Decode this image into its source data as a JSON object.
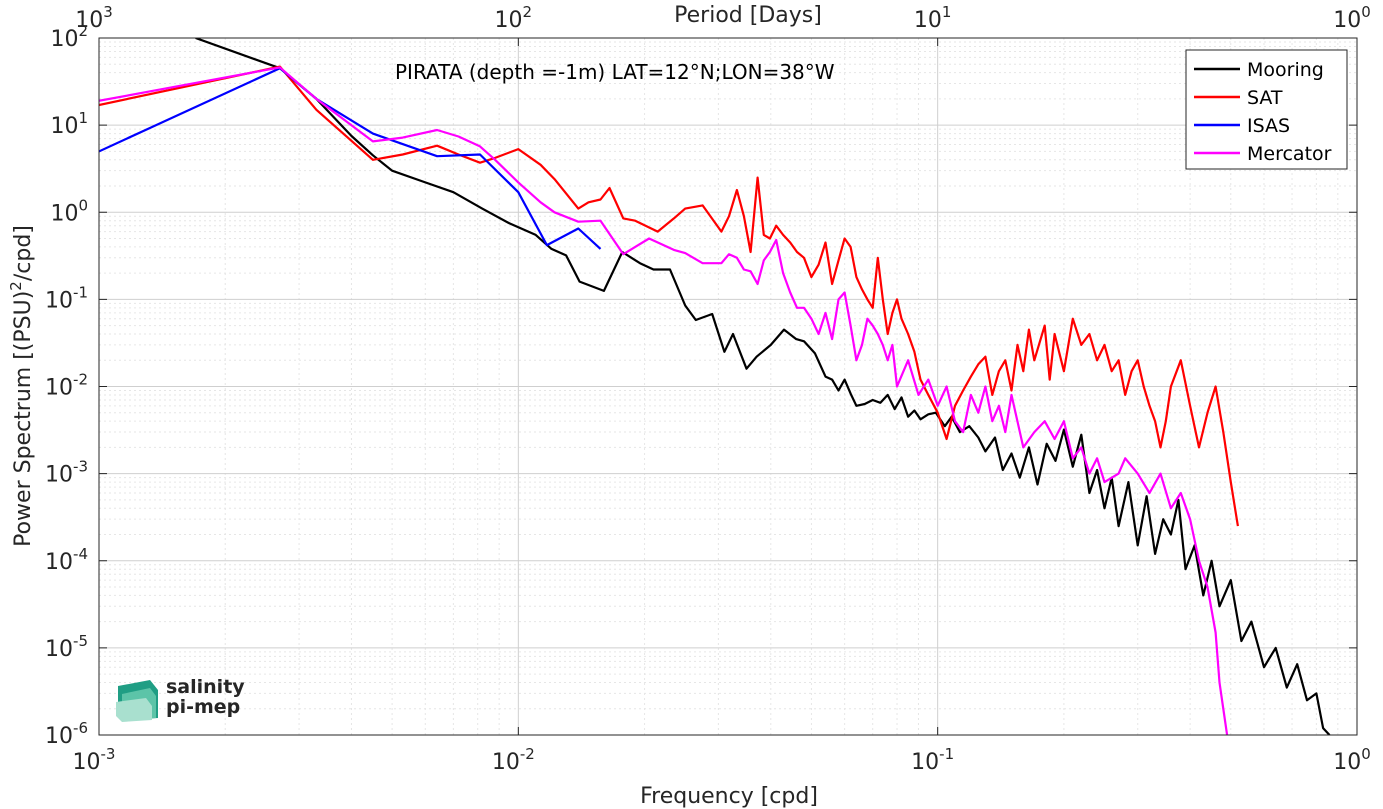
{
  "chart_data": {
    "type": "line",
    "title": "PIRATA (depth =-1m) LAT=12°N;LON=38°W",
    "xlabel": "Frequency [cpd]",
    "ylabel": "Power Spectrum [(PSU)",
    "ylabel_sup": "2",
    "ylabel_tail": "/cpd]",
    "top_xlabel": "Period [Days]",
    "xscale": "log",
    "yscale": "log",
    "xlim": [
      0.001,
      1
    ],
    "ylim": [
      1e-06,
      100
    ],
    "grid": true,
    "legend_position": "top-right",
    "x_ticks": [
      {
        "base": "10",
        "exp": "-3"
      },
      {
        "base": "10",
        "exp": "-2"
      },
      {
        "base": "10",
        "exp": "-1"
      },
      {
        "base": "10",
        "exp": "0"
      }
    ],
    "top_ticks": [
      {
        "base": "10",
        "exp": "3"
      },
      {
        "base": "10",
        "exp": "2"
      },
      {
        "base": "10",
        "exp": "1"
      },
      {
        "base": "10",
        "exp": "0"
      }
    ],
    "y_ticks": [
      {
        "base": "10",
        "exp": "2"
      },
      {
        "base": "10",
        "exp": "1"
      },
      {
        "base": "10",
        "exp": "0"
      },
      {
        "base": "10",
        "exp": "-1"
      },
      {
        "base": "10",
        "exp": "-2"
      },
      {
        "base": "10",
        "exp": "-3"
      },
      {
        "base": "10",
        "exp": "-4"
      },
      {
        "base": "10",
        "exp": "-5"
      },
      {
        "base": "10",
        "exp": "-6"
      }
    ],
    "series": [
      {
        "name": "Mooring",
        "color": "#000000",
        "points": [
          [
            0.0017,
            100
          ],
          [
            0.0027,
            45
          ],
          [
            0.0033,
            20
          ],
          [
            0.004,
            7.5
          ],
          [
            0.0045,
            4.5
          ],
          [
            0.005,
            3.0
          ],
          [
            0.006,
            2.2
          ],
          [
            0.007,
            1.7
          ],
          [
            0.0082,
            1.1
          ],
          [
            0.0095,
            0.75
          ],
          [
            0.011,
            0.55
          ],
          [
            0.012,
            0.38
          ],
          [
            0.013,
            0.32
          ],
          [
            0.014,
            0.16
          ],
          [
            0.016,
            0.125
          ],
          [
            0.0177,
            0.35
          ],
          [
            0.0195,
            0.26
          ],
          [
            0.021,
            0.22
          ],
          [
            0.023,
            0.22
          ],
          [
            0.025,
            0.085
          ],
          [
            0.0265,
            0.058
          ],
          [
            0.029,
            0.068
          ],
          [
            0.031,
            0.025
          ],
          [
            0.0325,
            0.04
          ],
          [
            0.035,
            0.016
          ],
          [
            0.037,
            0.022
          ],
          [
            0.04,
            0.03
          ],
          [
            0.043,
            0.045
          ],
          [
            0.046,
            0.035
          ],
          [
            0.048,
            0.033
          ],
          [
            0.051,
            0.024
          ],
          [
            0.054,
            0.013
          ],
          [
            0.056,
            0.012
          ],
          [
            0.058,
            0.009
          ],
          [
            0.06,
            0.012
          ],
          [
            0.062,
            0.0083
          ],
          [
            0.064,
            0.006
          ],
          [
            0.067,
            0.0063
          ],
          [
            0.07,
            0.007
          ],
          [
            0.073,
            0.0065
          ],
          [
            0.076,
            0.008
          ],
          [
            0.079,
            0.0055
          ],
          [
            0.082,
            0.0075
          ],
          [
            0.085,
            0.0045
          ],
          [
            0.088,
            0.0053
          ],
          [
            0.091,
            0.0042
          ],
          [
            0.095,
            0.0048
          ],
          [
            0.099,
            0.005
          ],
          [
            0.104,
            0.0035
          ],
          [
            0.108,
            0.0045
          ],
          [
            0.113,
            0.003
          ],
          [
            0.119,
            0.0035
          ],
          [
            0.125,
            0.0026
          ],
          [
            0.13,
            0.0018
          ],
          [
            0.137,
            0.0026
          ],
          [
            0.143,
            0.0011
          ],
          [
            0.15,
            0.0017
          ],
          [
            0.157,
            0.0009
          ],
          [
            0.165,
            0.002
          ],
          [
            0.173,
            0.00075
          ],
          [
            0.182,
            0.0022
          ],
          [
            0.191,
            0.0014
          ],
          [
            0.2,
            0.0032
          ],
          [
            0.21,
            0.0012
          ],
          [
            0.22,
            0.0028
          ],
          [
            0.23,
            0.0006
          ],
          [
            0.24,
            0.0011
          ],
          [
            0.25,
            0.0004
          ],
          [
            0.26,
            0.0009
          ],
          [
            0.27,
            0.00025
          ],
          [
            0.285,
            0.0008
          ],
          [
            0.3,
            0.00015
          ],
          [
            0.315,
            0.00055
          ],
          [
            0.33,
            0.00012
          ],
          [
            0.345,
            0.0003
          ],
          [
            0.36,
            0.0002
          ],
          [
            0.375,
            0.0005
          ],
          [
            0.39,
            8e-05
          ],
          [
            0.41,
            0.00015
          ],
          [
            0.43,
            4e-05
          ],
          [
            0.45,
            0.0001
          ],
          [
            0.47,
            3e-05
          ],
          [
            0.5,
            6e-05
          ],
          [
            0.53,
            1.2e-05
          ],
          [
            0.56,
            2e-05
          ],
          [
            0.6,
            6e-06
          ],
          [
            0.64,
            1e-05
          ],
          [
            0.68,
            3.5e-06
          ],
          [
            0.72,
            6.5e-06
          ],
          [
            0.76,
            2.5e-06
          ],
          [
            0.8,
            3e-06
          ],
          [
            0.83,
            1.2e-06
          ],
          [
            0.86,
            1e-06
          ]
        ]
      },
      {
        "name": "SAT",
        "color": "#ff0000",
        "points": [
          [
            0.001,
            17
          ],
          [
            0.0027,
            47
          ],
          [
            0.0033,
            15
          ],
          [
            0.0045,
            4.0
          ],
          [
            0.0053,
            4.6
          ],
          [
            0.0064,
            5.8
          ],
          [
            0.0072,
            4.6
          ],
          [
            0.0081,
            3.7
          ],
          [
            0.0088,
            4.2
          ],
          [
            0.01,
            5.3
          ],
          [
            0.0113,
            3.5
          ],
          [
            0.0122,
            2.4
          ],
          [
            0.0139,
            1.1
          ],
          [
            0.0147,
            1.3
          ],
          [
            0.0157,
            1.4
          ],
          [
            0.0165,
            1.9
          ],
          [
            0.0178,
            0.85
          ],
          [
            0.019,
            0.8
          ],
          [
            0.0215,
            0.6
          ],
          [
            0.0235,
            0.85
          ],
          [
            0.025,
            1.1
          ],
          [
            0.0275,
            1.2
          ],
          [
            0.0305,
            0.6
          ],
          [
            0.0318,
            0.9
          ],
          [
            0.0332,
            1.8
          ],
          [
            0.0345,
            0.9
          ],
          [
            0.0358,
            0.35
          ],
          [
            0.0372,
            2.5
          ],
          [
            0.0385,
            0.55
          ],
          [
            0.0398,
            0.5
          ],
          [
            0.0412,
            0.7
          ],
          [
            0.0428,
            0.55
          ],
          [
            0.0445,
            0.45
          ],
          [
            0.0462,
            0.35
          ],
          [
            0.048,
            0.3
          ],
          [
            0.05,
            0.18
          ],
          [
            0.052,
            0.25
          ],
          [
            0.054,
            0.45
          ],
          [
            0.056,
            0.15
          ],
          [
            0.058,
            0.28
          ],
          [
            0.06,
            0.5
          ],
          [
            0.062,
            0.4
          ],
          [
            0.064,
            0.18
          ],
          [
            0.066,
            0.13
          ],
          [
            0.068,
            0.1
          ],
          [
            0.07,
            0.08
          ],
          [
            0.072,
            0.3
          ],
          [
            0.074,
            0.1
          ],
          [
            0.076,
            0.04
          ],
          [
            0.078,
            0.07
          ],
          [
            0.08,
            0.1
          ],
          [
            0.082,
            0.06
          ],
          [
            0.085,
            0.04
          ],
          [
            0.088,
            0.025
          ],
          [
            0.091,
            0.012
          ],
          [
            0.095,
            0.008
          ],
          [
            0.1,
            0.005
          ],
          [
            0.105,
            0.0025
          ],
          [
            0.11,
            0.006
          ],
          [
            0.115,
            0.009
          ],
          [
            0.12,
            0.013
          ],
          [
            0.125,
            0.018
          ],
          [
            0.13,
            0.022
          ],
          [
            0.135,
            0.008
          ],
          [
            0.14,
            0.015
          ],
          [
            0.145,
            0.02
          ],
          [
            0.15,
            0.009
          ],
          [
            0.155,
            0.03
          ],
          [
            0.16,
            0.015
          ],
          [
            0.165,
            0.045
          ],
          [
            0.17,
            0.02
          ],
          [
            0.18,
            0.05
          ],
          [
            0.185,
            0.012
          ],
          [
            0.19,
            0.04
          ],
          [
            0.2,
            0.015
          ],
          [
            0.21,
            0.06
          ],
          [
            0.22,
            0.03
          ],
          [
            0.23,
            0.04
          ],
          [
            0.24,
            0.02
          ],
          [
            0.25,
            0.03
          ],
          [
            0.26,
            0.015
          ],
          [
            0.27,
            0.02
          ],
          [
            0.28,
            0.008
          ],
          [
            0.29,
            0.015
          ],
          [
            0.3,
            0.02
          ],
          [
            0.31,
            0.01
          ],
          [
            0.32,
            0.006
          ],
          [
            0.33,
            0.004
          ],
          [
            0.34,
            0.002
          ],
          [
            0.35,
            0.004
          ],
          [
            0.36,
            0.01
          ],
          [
            0.38,
            0.02
          ],
          [
            0.4,
            0.006
          ],
          [
            0.42,
            0.002
          ],
          [
            0.44,
            0.005
          ],
          [
            0.46,
            0.01
          ],
          [
            0.48,
            0.003
          ],
          [
            0.5,
            0.0008
          ],
          [
            0.52,
            0.00025
          ]
        ]
      },
      {
        "name": "ISAS",
        "color": "#0000ff",
        "points": [
          [
            0.001,
            5.0
          ],
          [
            0.0027,
            45
          ],
          [
            0.0033,
            20
          ],
          [
            0.0045,
            8.0
          ],
          [
            0.0064,
            4.4
          ],
          [
            0.0081,
            4.6
          ],
          [
            0.01,
            1.7
          ],
          [
            0.0117,
            0.42
          ],
          [
            0.0139,
            0.65
          ],
          [
            0.0157,
            0.38
          ]
        ]
      },
      {
        "name": "Mercator",
        "color": "#ff00ff",
        "points": [
          [
            0.001,
            19
          ],
          [
            0.0027,
            46
          ],
          [
            0.0033,
            20
          ],
          [
            0.0045,
            6.5
          ],
          [
            0.0053,
            7.2
          ],
          [
            0.0064,
            8.8
          ],
          [
            0.0072,
            7.4
          ],
          [
            0.0081,
            5.7
          ],
          [
            0.0088,
            4.0
          ],
          [
            0.01,
            2.2
          ],
          [
            0.0113,
            1.3
          ],
          [
            0.0122,
            1.0
          ],
          [
            0.0139,
            0.78
          ],
          [
            0.0157,
            0.8
          ],
          [
            0.0178,
            0.33
          ],
          [
            0.019,
            0.4
          ],
          [
            0.0205,
            0.5
          ],
          [
            0.0235,
            0.37
          ],
          [
            0.025,
            0.34
          ],
          [
            0.0275,
            0.26
          ],
          [
            0.0305,
            0.26
          ],
          [
            0.0318,
            0.33
          ],
          [
            0.0332,
            0.3
          ],
          [
            0.0345,
            0.22
          ],
          [
            0.0358,
            0.21
          ],
          [
            0.0372,
            0.15
          ],
          [
            0.0385,
            0.28
          ],
          [
            0.0398,
            0.35
          ],
          [
            0.0412,
            0.48
          ],
          [
            0.0428,
            0.2
          ],
          [
            0.0445,
            0.12
          ],
          [
            0.0462,
            0.08
          ],
          [
            0.048,
            0.08
          ],
          [
            0.05,
            0.06
          ],
          [
            0.052,
            0.04
          ],
          [
            0.054,
            0.07
          ],
          [
            0.056,
            0.035
          ],
          [
            0.058,
            0.1
          ],
          [
            0.06,
            0.12
          ],
          [
            0.062,
            0.05
          ],
          [
            0.064,
            0.02
          ],
          [
            0.066,
            0.03
          ],
          [
            0.068,
            0.06
          ],
          [
            0.07,
            0.05
          ],
          [
            0.072,
            0.04
          ],
          [
            0.074,
            0.03
          ],
          [
            0.076,
            0.02
          ],
          [
            0.078,
            0.03
          ],
          [
            0.08,
            0.01
          ],
          [
            0.085,
            0.02
          ],
          [
            0.09,
            0.008
          ],
          [
            0.095,
            0.012
          ],
          [
            0.1,
            0.006
          ],
          [
            0.105,
            0.01
          ],
          [
            0.11,
            0.004
          ],
          [
            0.115,
            0.003
          ],
          [
            0.12,
            0.008
          ],
          [
            0.125,
            0.005
          ],
          [
            0.13,
            0.01
          ],
          [
            0.135,
            0.004
          ],
          [
            0.14,
            0.006
          ],
          [
            0.145,
            0.003
          ],
          [
            0.15,
            0.008
          ],
          [
            0.16,
            0.002
          ],
          [
            0.17,
            0.003
          ],
          [
            0.18,
            0.004
          ],
          [
            0.19,
            0.0025
          ],
          [
            0.2,
            0.004
          ],
          [
            0.21,
            0.0015
          ],
          [
            0.22,
            0.002
          ],
          [
            0.23,
            0.001
          ],
          [
            0.24,
            0.0015
          ],
          [
            0.25,
            0.0008
          ],
          [
            0.27,
            0.001
          ],
          [
            0.28,
            0.0015
          ],
          [
            0.3,
            0.001
          ],
          [
            0.32,
            0.0006
          ],
          [
            0.34,
            0.001
          ],
          [
            0.36,
            0.0004
          ],
          [
            0.38,
            0.0006
          ],
          [
            0.4,
            0.0003
          ],
          [
            0.42,
            0.0001
          ],
          [
            0.44,
            5e-05
          ],
          [
            0.46,
            1.5e-05
          ],
          [
            0.47,
            4e-06
          ],
          [
            0.48,
            2e-06
          ],
          [
            0.49,
            1e-06
          ]
        ]
      }
    ]
  },
  "logo": {
    "line1": "salinity",
    "line2": "pi-mep"
  },
  "colors": {
    "axis": "#262626",
    "grid": "#d9d9d9",
    "logo_text": "#2aa58a"
  }
}
